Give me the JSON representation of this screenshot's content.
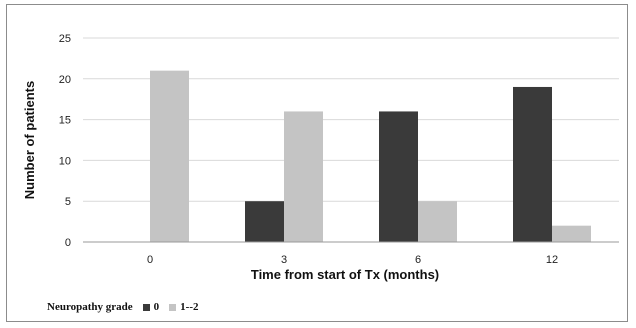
{
  "chart_data": {
    "type": "bar",
    "categories": [
      "0",
      "3",
      "6",
      "12"
    ],
    "series": [
      {
        "name": "0",
        "values": [
          0,
          5,
          16,
          19
        ],
        "color": "#3a3a3a"
      },
      {
        "name": "1--2",
        "values": [
          21,
          16,
          5,
          2
        ],
        "color": "#c4c4c4"
      }
    ],
    "xlabel": "Time from start of Tx (months)",
    "ylabel": "Number of patients",
    "ylim": [
      0,
      25
    ],
    "yticks": [
      0,
      5,
      10,
      15,
      20,
      25
    ],
    "grid": true,
    "legend_title": "Neuropathy grade",
    "legend_position": "bottom-left"
  }
}
